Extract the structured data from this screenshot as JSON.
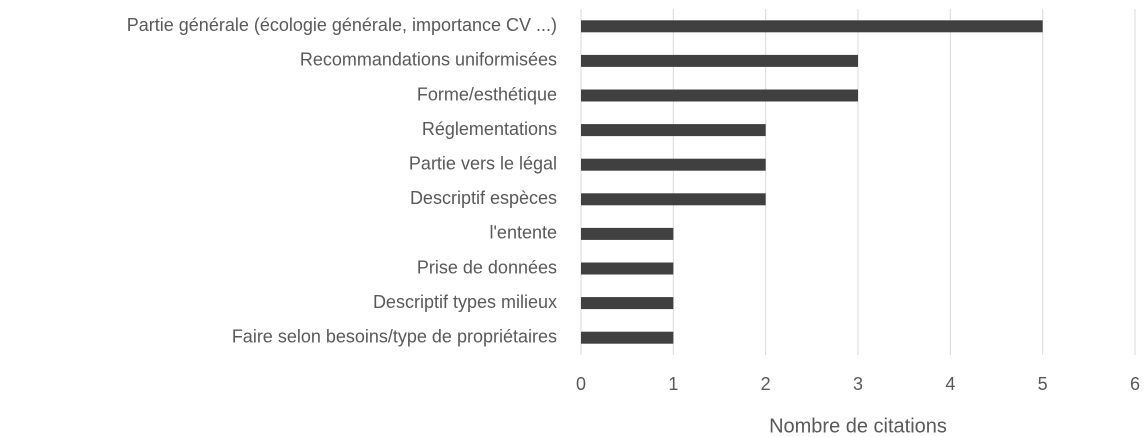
{
  "chart_data": {
    "type": "bar",
    "orientation": "horizontal",
    "categories": [
      "Partie générale (écologie générale, importance CV ...)",
      "Recommandations uniformisées",
      "Forme/esthétique",
      "Réglementations",
      "Partie vers le légal",
      "Descriptif espèces",
      "l'entente",
      "Prise de données",
      "Descriptif types milieux",
      "Faire selon besoins/type de propriétaires"
    ],
    "values": [
      5,
      3,
      3,
      2,
      2,
      2,
      1,
      1,
      1,
      1
    ],
    "color": "#404040",
    "x_label": "Nombre de citations",
    "xlim": [
      0,
      6
    ],
    "xticks": [
      0,
      1,
      2,
      3,
      4,
      5,
      6
    ],
    "grid": true
  }
}
